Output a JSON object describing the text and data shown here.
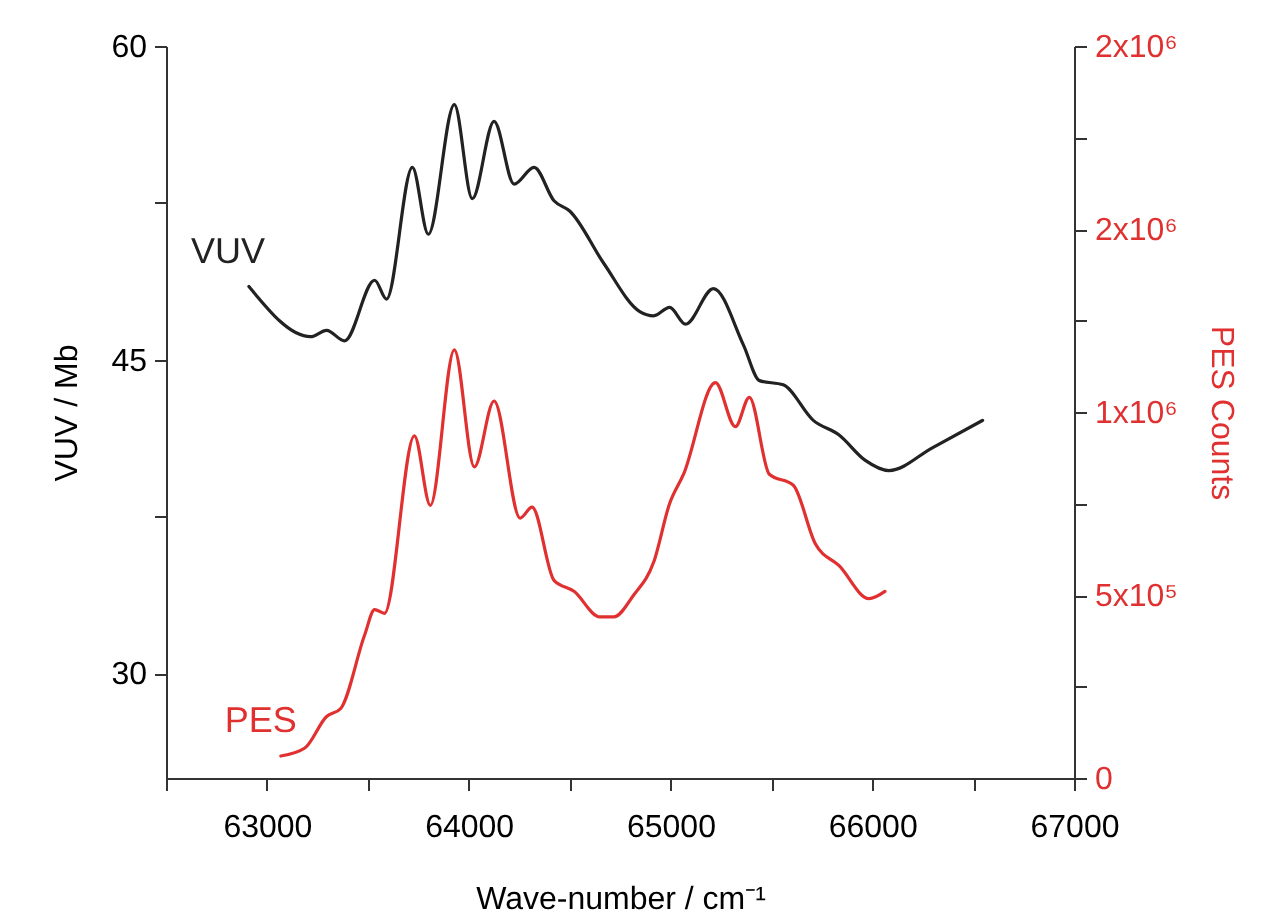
{
  "chart_data": {
    "type": "line",
    "xlabel": "Wave-number / cm⁻¹",
    "ylabel": "VUV / Mb",
    "y2label": "PES Counts",
    "xlim": [
      62500,
      67000
    ],
    "xticks": [
      {
        "value": 62500,
        "label": null
      },
      63000,
      {
        "value": 63500,
        "label": null
      },
      64000,
      {
        "value": 64500,
        "label": null
      },
      65000,
      {
        "value": 65500,
        "label": null
      },
      66000,
      {
        "value": 66500,
        "label": null
      },
      67000
    ],
    "ylim": [
      25,
      60
    ],
    "yticks": [
      30,
      {
        "value": 37.5,
        "label": null
      },
      45,
      {
        "value": 52.5,
        "label": null
      },
      60
    ],
    "y2lim": [
      0,
      2000000
    ],
    "y2ticks": [
      0,
      {
        "value": 250000,
        "label": null
      },
      {
        "value": 500000,
        "label": "5x10⁵"
      },
      {
        "value": 750000,
        "label": null
      },
      {
        "value": 1000000,
        "label": "1x10⁶"
      },
      {
        "value": 1250000,
        "label": null
      },
      {
        "value": 1500000,
        "label": "2x10⁶"
      },
      {
        "value": 1750000,
        "label": null
      },
      {
        "value": 2000000,
        "label": "2x10⁶"
      }
    ],
    "series": [
      {
        "name": "VUV",
        "color": "#222222",
        "x": [
          62911,
          63217,
          63296,
          63385,
          63534,
          63593,
          63721,
          63800,
          63929,
          64018,
          64126,
          64225,
          64324,
          64423,
          64502,
          64670,
          64848,
          64917,
          64996,
          65075,
          65213,
          65362,
          65441,
          65559,
          65708,
          65836,
          65964,
          66083,
          66300,
          66547
        ],
        "values": [
          48.5,
          46.1,
          46.4,
          45.9,
          48.8,
          47.9,
          54.2,
          51.0,
          57.2,
          52.7,
          56.4,
          53.4,
          54.2,
          52.6,
          52.1,
          49.6,
          47.3,
          47.1,
          47.5,
          46.7,
          48.4,
          45.7,
          44.0,
          43.8,
          42.1,
          41.4,
          40.2,
          39.7,
          40.8,
          42.1
        ]
      },
      {
        "name": "PES",
        "color": "#e03030",
        "axis": "y2",
        "x": [
          63069,
          63188,
          63296,
          63366,
          63484,
          63534,
          63583,
          63731,
          63810,
          63929,
          64028,
          64126,
          64255,
          64314,
          64423,
          64522,
          64650,
          64719,
          64818,
          64917,
          64996,
          65065,
          65223,
          65322,
          65391,
          65490,
          65609,
          65718,
          65836,
          65984,
          66063
        ],
        "values": [
          60000,
          82000,
          168000,
          190000,
          390000,
          460000,
          450000,
          935000,
          745000,
          1170000,
          850000,
          1030000,
          710000,
          740000,
          540000,
          510000,
          440000,
          440000,
          500000,
          590000,
          750000,
          830000,
          1080000,
          960000,
          1040000,
          830000,
          800000,
          640000,
          580000,
          490000,
          510000
        ]
      }
    ]
  }
}
